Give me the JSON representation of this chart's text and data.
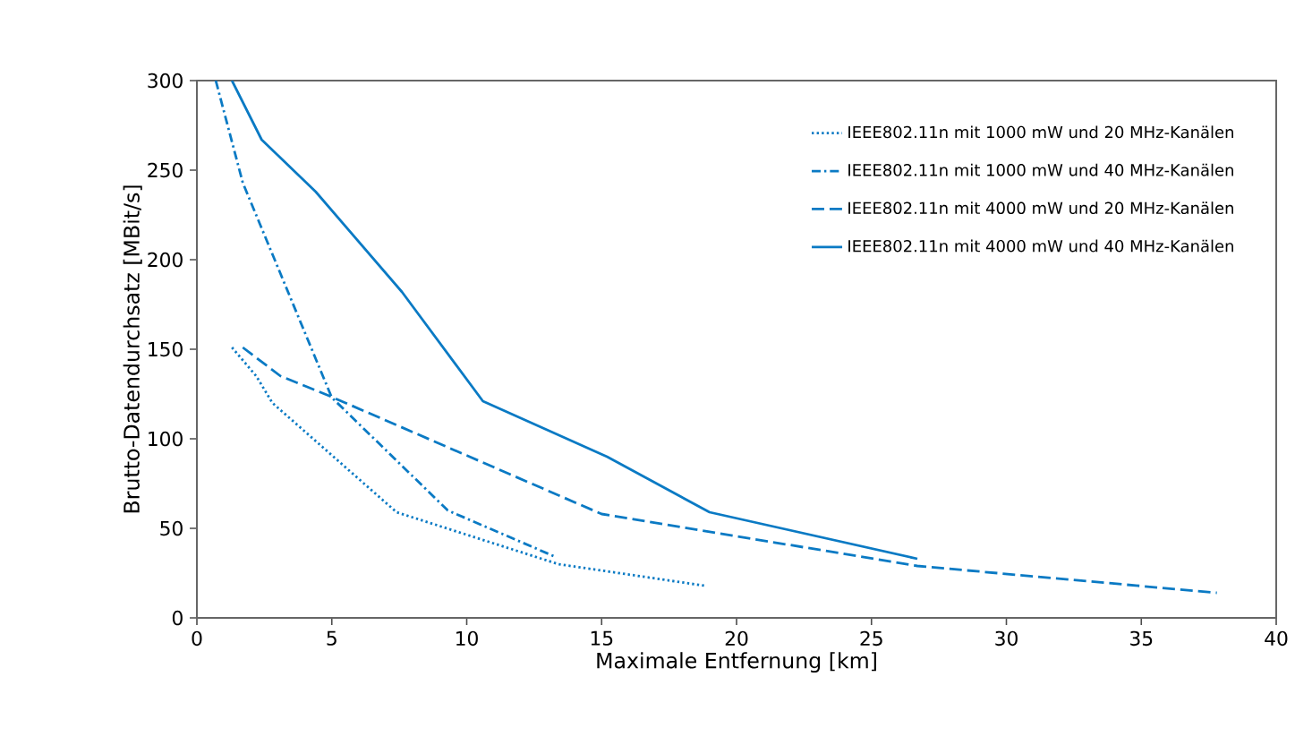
{
  "chart_data": {
    "type": "line",
    "xlabel": "Maximale Entfernung [km]",
    "ylabel": "Brutto-Datendurchsatz [MBit/s]",
    "xlim": [
      0,
      40
    ],
    "ylim": [
      0,
      300
    ],
    "xticks": [
      0,
      5,
      10,
      15,
      20,
      25,
      30,
      35,
      40
    ],
    "yticks": [
      0,
      50,
      100,
      150,
      200,
      250,
      300
    ],
    "grid": false,
    "legend": "top right",
    "marker": "none",
    "series": [
      {
        "name": "IEEE802.11n mit 1000 mW und 20 MHz-Kanälen",
        "color": "#0a7ac4",
        "line_style": "dotted",
        "x": [
          1.3,
          2.2,
          2.8,
          7.4,
          13.4,
          18.8
        ],
        "values": [
          151,
          135,
          120,
          59,
          30,
          18
        ]
      },
      {
        "name": "IEEE802.11n mit 1000 mW und 40 MHz-Kanälen",
        "color": "#0a7ac4",
        "line_style": "dashdotted",
        "x": [
          0.7,
          1.7,
          5.0,
          9.3,
          13.3
        ],
        "values": [
          300,
          243,
          123,
          60,
          34
        ]
      },
      {
        "name": "IEEE802.11n mit 4000 mW und 20 MHz-Kanälen",
        "color": "#0a7ac4",
        "line_style": "dashed",
        "x": [
          1.7,
          3.1,
          4.9,
          15.0,
          26.7,
          37.8
        ],
        "values": [
          151,
          135,
          124,
          58,
          29,
          14
        ]
      },
      {
        "name": "IEEE802.11n mit 4000 mW und 40 MHz-Kanälen",
        "color": "#0a7ac4",
        "line_style": "solid",
        "x": [
          1.3,
          2.4,
          4.4,
          7.6,
          10.6,
          15.2,
          19.0,
          26.7
        ],
        "values": [
          300,
          267,
          238,
          182,
          121,
          90,
          59,
          33
        ]
      }
    ]
  }
}
